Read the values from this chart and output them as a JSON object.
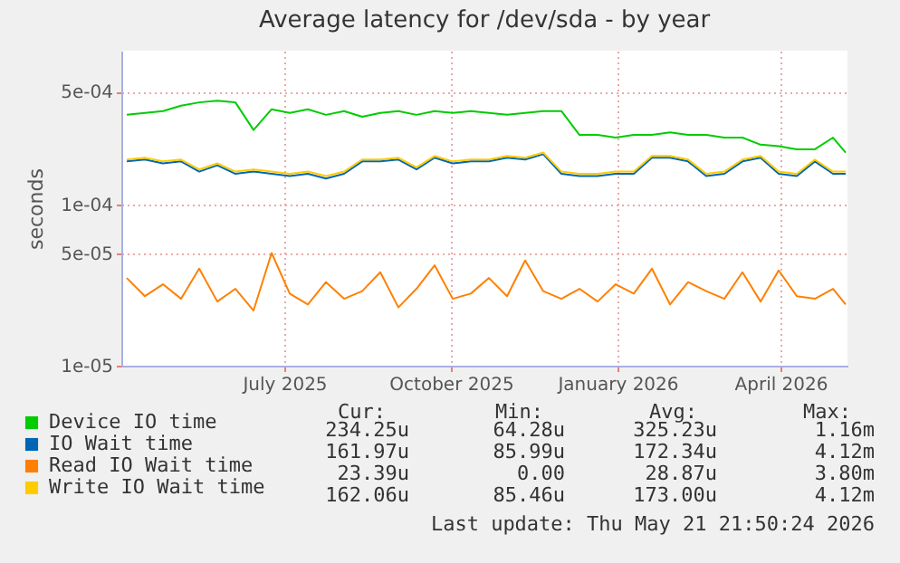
{
  "chart_data": {
    "type": "line",
    "title": "Average latency for /dev/sda - by year",
    "ylabel": "seconds",
    "x": [
      "2025-04-05",
      "2025-04-15",
      "2025-04-25",
      "2025-05-05",
      "2025-05-15",
      "2025-05-25",
      "2025-06-04",
      "2025-06-14",
      "2025-06-24",
      "2025-07-04",
      "2025-07-14",
      "2025-07-24",
      "2025-08-03",
      "2025-08-13",
      "2025-08-23",
      "2025-09-02",
      "2025-09-12",
      "2025-09-22",
      "2025-10-02",
      "2025-10-12",
      "2025-10-22",
      "2025-11-01",
      "2025-11-11",
      "2025-11-21",
      "2025-12-01",
      "2025-12-11",
      "2025-12-21",
      "2025-12-31",
      "2026-01-10",
      "2026-01-20",
      "2026-01-30",
      "2026-02-09",
      "2026-02-19",
      "2026-03-01",
      "2026-03-11",
      "2026-03-21",
      "2026-03-31",
      "2026-04-10",
      "2026-04-20",
      "2026-04-30",
      "2026-05-07"
    ],
    "series": [
      {
        "name": "Device IO time",
        "color": "#00cc00",
        "values": [
          0.00036,
          0.00037,
          0.00038,
          0.00041,
          0.00043,
          0.00044,
          0.00043,
          0.00029,
          0.00039,
          0.00037,
          0.00039,
          0.00036,
          0.00038,
          0.00035,
          0.00037,
          0.00038,
          0.00036,
          0.00038,
          0.00037,
          0.00038,
          0.00037,
          0.00036,
          0.00037,
          0.00038,
          0.00038,
          0.00027,
          0.00027,
          0.00026,
          0.00027,
          0.00027,
          0.00028,
          0.00027,
          0.00027,
          0.00026,
          0.00026,
          0.000235,
          0.00023,
          0.00022,
          0.00022,
          0.00026,
          0.00021
        ]
      },
      {
        "name": "IO Wait time",
        "color": "#0066b3",
        "values": [
          0.000185,
          0.00019,
          0.00018,
          0.000185,
          0.00016,
          0.000175,
          0.000155,
          0.00016,
          0.000155,
          0.00015,
          0.000155,
          0.000145,
          0.000155,
          0.000185,
          0.000185,
          0.00019,
          0.000165,
          0.000195,
          0.00018,
          0.000185,
          0.000185,
          0.000195,
          0.00019,
          0.000205,
          0.000155,
          0.00015,
          0.00015,
          0.000155,
          0.000155,
          0.000195,
          0.000195,
          0.000185,
          0.00015,
          0.000155,
          0.000185,
          0.000195,
          0.000155,
          0.00015,
          0.000185,
          0.000155,
          0.000155
        ]
      },
      {
        "name": "Read IO Wait time",
        "color": "#ff8000",
        "values": [
          3.5e-05,
          2.7e-05,
          3.2e-05,
          2.6e-05,
          4e-05,
          2.5e-05,
          3e-05,
          2.2e-05,
          5e-05,
          2.8e-05,
          2.4e-05,
          3.3e-05,
          2.6e-05,
          2.9e-05,
          3.8e-05,
          2.3e-05,
          3e-05,
          4.2e-05,
          2.6e-05,
          2.8e-05,
          3.5e-05,
          2.7e-05,
          4.5e-05,
          2.9e-05,
          2.6e-05,
          3e-05,
          2.5e-05,
          3.2e-05,
          2.8e-05,
          4e-05,
          2.4e-05,
          3.3e-05,
          2.9e-05,
          2.6e-05,
          3.8e-05,
          2.5e-05,
          3.9e-05,
          2.7e-05,
          2.6e-05,
          3e-05,
          2.4e-05
        ]
      },
      {
        "name": "Write IO Wait time",
        "color": "#ffcc00",
        "values": [
          0.00019,
          0.000195,
          0.000185,
          0.00019,
          0.000165,
          0.00018,
          0.00016,
          0.000165,
          0.00016,
          0.000155,
          0.00016,
          0.00015,
          0.00016,
          0.00019,
          0.00019,
          0.000195,
          0.00017,
          0.0002,
          0.000185,
          0.00019,
          0.00019,
          0.0002,
          0.000195,
          0.00021,
          0.00016,
          0.000155,
          0.000155,
          0.00016,
          0.00016,
          0.0002,
          0.0002,
          0.00019,
          0.000155,
          0.00016,
          0.00019,
          0.0002,
          0.00016,
          0.000155,
          0.00019,
          0.00016,
          0.00016
        ]
      }
    ],
    "xlim": [
      "2025-04-02",
      "2026-05-08"
    ],
    "xticks": [
      {
        "value": "2025-07-01",
        "label": "July 2025"
      },
      {
        "value": "2025-10-01",
        "label": "October 2025"
      },
      {
        "value": "2026-01-01",
        "label": "January 2026"
      },
      {
        "value": "2026-04-01",
        "label": "April 2026"
      }
    ],
    "ylim": [
      1e-05,
      0.0009
    ],
    "log": true,
    "yticks": [
      {
        "value": 1e-05,
        "label": "1e-05"
      },
      {
        "value": 5e-05,
        "label": "5e-05"
      },
      {
        "value": 0.0001,
        "label": "1e-04"
      },
      {
        "value": 0.0005,
        "label": "5e-04"
      }
    ],
    "grid": true,
    "legend": "bottom left",
    "marker": "none",
    "line_style": "solid",
    "annotations": [
      "Cur:",
      "Min:",
      "Avg:",
      "Max:",
      "234.25u",
      "64.28u",
      "325.23u",
      "1.16m",
      "161.97u",
      "85.99u",
      "172.34u",
      "4.12m",
      "23.39u",
      "0.00",
      "28.87u",
      "3.80m",
      "162.06u",
      "85.46u",
      "173.00u",
      "4.12m",
      "Last update: Thu May 21 21:50:24 2026"
    ]
  }
}
